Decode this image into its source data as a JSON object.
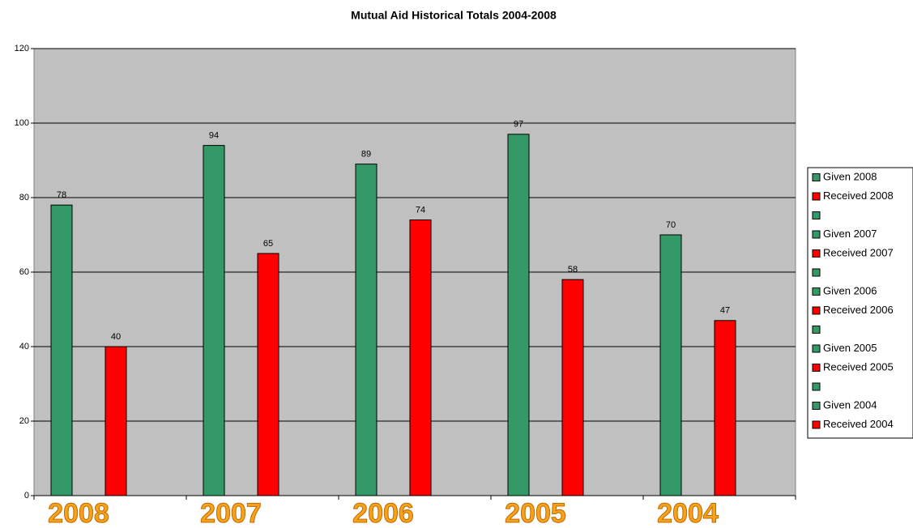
{
  "chart_data": {
    "type": "bar",
    "title": "Mutual Aid Historical Totals 2004-2008",
    "categories": [
      "2008",
      "2007",
      "2006",
      "2005",
      "2004"
    ],
    "series": [
      {
        "name": "Given 2008",
        "color": "#339966",
        "values": [
          78,
          null,
          null,
          null,
          null
        ]
      },
      {
        "name": "Received 2008",
        "color": "#ff0000",
        "values": [
          40,
          null,
          null,
          null,
          null
        ]
      },
      {
        "name": null,
        "color": "#339966",
        "values": [
          null,
          null,
          null,
          null,
          null
        ]
      },
      {
        "name": "Given 2007",
        "color": "#339966",
        "values": [
          null,
          94,
          null,
          null,
          null
        ]
      },
      {
        "name": "Received 2007",
        "color": "#ff0000",
        "values": [
          null,
          65,
          null,
          null,
          null
        ]
      },
      {
        "name": null,
        "color": "#339966",
        "values": [
          null,
          null,
          null,
          null,
          null
        ]
      },
      {
        "name": "Given 2006",
        "color": "#339966",
        "values": [
          null,
          null,
          89,
          null,
          null
        ]
      },
      {
        "name": "Received 2006",
        "color": "#ff0000",
        "values": [
          null,
          null,
          74,
          null,
          null
        ]
      },
      {
        "name": null,
        "color": "#339966",
        "values": [
          null,
          null,
          null,
          null,
          null
        ]
      },
      {
        "name": "Given 2005",
        "color": "#339966",
        "values": [
          null,
          null,
          null,
          97,
          null
        ]
      },
      {
        "name": "Received 2005",
        "color": "#ff0000",
        "values": [
          null,
          null,
          null,
          58,
          null
        ]
      },
      {
        "name": null,
        "color": "#339966",
        "values": [
          null,
          null,
          null,
          null,
          null
        ]
      },
      {
        "name": "Given 2004",
        "color": "#339966",
        "values": [
          null,
          null,
          null,
          null,
          70
        ]
      },
      {
        "name": "Received 2004",
        "color": "#ff0000",
        "values": [
          null,
          null,
          null,
          null,
          47
        ]
      }
    ],
    "ylim": [
      0,
      120
    ],
    "yticks": [
      0,
      20,
      40,
      60,
      80,
      100,
      120
    ],
    "grid": true,
    "legend": "right"
  }
}
